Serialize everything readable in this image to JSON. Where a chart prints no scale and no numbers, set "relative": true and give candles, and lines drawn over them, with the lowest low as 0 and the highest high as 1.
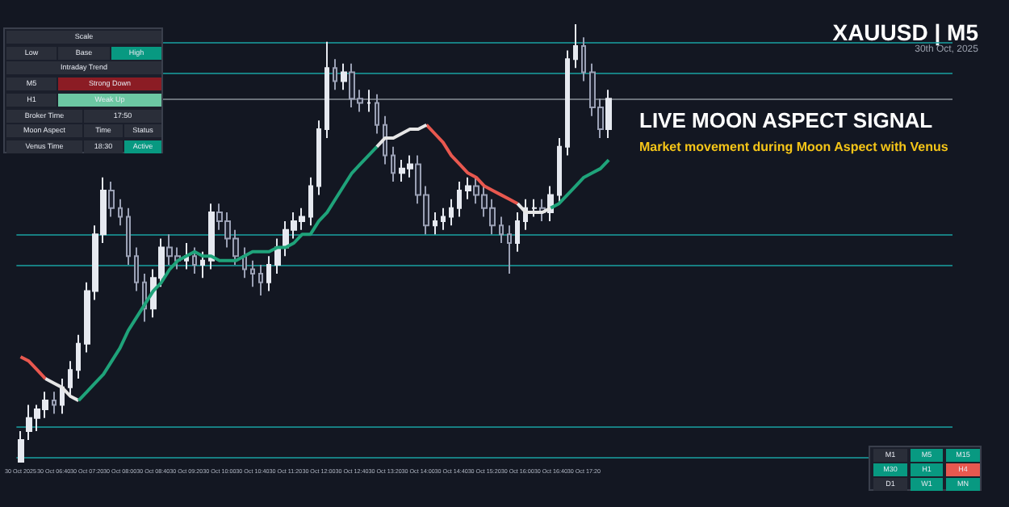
{
  "chart_data": {
    "type": "candlestick",
    "title": "LIVE MOON ASPECT SIGNAL",
    "subtitle": "Market movement during Moon Aspect with Venus",
    "relative": true,
    "marker": "none",
    "annotations": [
      "XAUUSD | M5",
      "30th Oct, 2025",
      "Scale",
      "Low",
      "Base",
      "High",
      "Intraday Trend",
      "M5",
      "Strong Down",
      "H1",
      "Weak Up",
      "Broker Time",
      "17:50",
      "Moon Aspect",
      "Time",
      "Status",
      "Venus Time",
      "18:30",
      "Active",
      "M1",
      "M5",
      "M15",
      "M30",
      "H1",
      "H4",
      "D1",
      "W1",
      "MN"
    ],
    "categories": [
      "30 Oct 2025",
      null,
      null,
      null,
      "30 Oct 06:40",
      null,
      null,
      null,
      "30 Oct 07:20",
      null,
      null,
      null,
      "30 Oct 08:00",
      null,
      null,
      null,
      "30 Oct 08:40",
      null,
      null,
      null,
      "30 Oct 09:20",
      null,
      null,
      null,
      "30 Oct 10:00",
      null,
      null,
      null,
      "30 Oct 10:40",
      null,
      null,
      null,
      "30 Oct 11:20",
      null,
      null,
      null,
      "30 Oct 12:00",
      null,
      null,
      null,
      "30 Oct 12:40",
      null,
      null,
      null,
      "30 Oct 13:20",
      null,
      null,
      null,
      "30 Oct 14:00",
      null,
      null,
      null,
      "30 Oct 14:40",
      null,
      null,
      null,
      "30 Oct 15:20",
      null,
      null,
      null,
      "30 Oct 16:00",
      null,
      null,
      null,
      "30 Oct 16:40",
      null,
      null,
      null,
      "30 Oct 17:20",
      null,
      null,
      null
    ],
    "ohlc": [
      [
        0,
        0.07,
        0,
        0.05
      ],
      [
        0.07,
        0.13,
        0.05,
        0.1
      ],
      [
        0.1,
        0.13,
        0.07,
        0.12
      ],
      [
        0.12,
        0.16,
        0.1,
        0.14
      ],
      [
        0.14,
        0.16,
        0.11,
        0.13
      ],
      [
        0.13,
        0.19,
        0.11,
        0.17
      ],
      [
        0.17,
        0.23,
        0.15,
        0.21
      ],
      [
        0.21,
        0.29,
        0.19,
        0.27
      ],
      [
        0.27,
        0.41,
        0.25,
        0.39
      ],
      [
        0.39,
        0.54,
        0.37,
        0.52
      ],
      [
        0.52,
        0.65,
        0.5,
        0.62
      ],
      [
        0.62,
        0.64,
        0.56,
        0.58
      ],
      [
        0.58,
        0.6,
        0.54,
        0.56
      ],
      [
        0.56,
        0.58,
        0.45,
        0.47
      ],
      [
        0.47,
        0.49,
        0.39,
        0.41
      ],
      [
        0.41,
        0.43,
        0.32,
        0.35
      ],
      [
        0.35,
        0.44,
        0.33,
        0.42
      ],
      [
        0.42,
        0.51,
        0.4,
        0.49
      ],
      [
        0.49,
        0.52,
        0.45,
        0.47
      ],
      [
        0.47,
        0.49,
        0.44,
        0.46
      ],
      [
        0.46,
        0.5,
        0.44,
        0.47
      ],
      [
        0.47,
        0.49,
        0.43,
        0.45
      ],
      [
        0.45,
        0.48,
        0.42,
        0.46
      ],
      [
        0.46,
        0.59,
        0.44,
        0.57
      ],
      [
        0.57,
        0.59,
        0.53,
        0.55
      ],
      [
        0.55,
        0.57,
        0.49,
        0.51
      ],
      [
        0.51,
        0.53,
        0.45,
        0.47
      ],
      [
        0.47,
        0.49,
        0.42,
        0.44
      ],
      [
        0.44,
        0.46,
        0.4,
        0.43
      ],
      [
        0.43,
        0.45,
        0.38,
        0.41
      ],
      [
        0.41,
        0.47,
        0.39,
        0.45
      ],
      [
        0.45,
        0.51,
        0.43,
        0.49
      ],
      [
        0.49,
        0.55,
        0.47,
        0.53
      ],
      [
        0.53,
        0.57,
        0.51,
        0.55
      ],
      [
        0.55,
        0.58,
        0.53,
        0.56
      ],
      [
        0.56,
        0.65,
        0.54,
        0.63
      ],
      [
        0.63,
        0.78,
        0.61,
        0.76
      ],
      [
        0.76,
        0.96,
        0.74,
        0.9
      ],
      [
        0.9,
        0.92,
        0.85,
        0.87
      ],
      [
        0.87,
        0.91,
        0.85,
        0.89
      ],
      [
        0.89,
        0.91,
        0.81,
        0.83
      ],
      [
        0.83,
        0.85,
        0.8,
        0.82
      ],
      [
        0.82,
        0.85,
        0.8,
        0.82
      ],
      [
        0.82,
        0.84,
        0.75,
        0.77
      ],
      [
        0.77,
        0.79,
        0.68,
        0.7
      ],
      [
        0.7,
        0.72,
        0.64,
        0.66
      ],
      [
        0.66,
        0.69,
        0.64,
        0.67
      ],
      [
        0.67,
        0.7,
        0.65,
        0.68
      ],
      [
        0.68,
        0.7,
        0.59,
        0.61
      ],
      [
        0.61,
        0.63,
        0.52,
        0.54
      ],
      [
        0.54,
        0.57,
        0.52,
        0.55
      ],
      [
        0.55,
        0.58,
        0.53,
        0.56
      ],
      [
        0.56,
        0.6,
        0.54,
        0.58
      ],
      [
        0.58,
        0.64,
        0.56,
        0.62
      ],
      [
        0.62,
        0.65,
        0.6,
        0.63
      ],
      [
        0.63,
        0.65,
        0.59,
        0.61
      ],
      [
        0.61,
        0.63,
        0.56,
        0.58
      ],
      [
        0.58,
        0.6,
        0.52,
        0.54
      ],
      [
        0.54,
        0.56,
        0.5,
        0.52
      ],
      [
        0.52,
        0.54,
        0.43,
        0.5
      ],
      [
        0.5,
        0.57,
        0.48,
        0.55
      ],
      [
        0.55,
        0.6,
        0.53,
        0.58
      ],
      [
        0.58,
        0.6,
        0.56,
        0.58
      ],
      [
        0.58,
        0.6,
        0.55,
        0.57
      ],
      [
        0.57,
        0.63,
        0.55,
        0.61
      ],
      [
        0.61,
        0.74,
        0.59,
        0.72
      ],
      [
        0.72,
        0.94,
        0.7,
        0.92
      ],
      [
        0.92,
        1.0,
        0.9,
        0.95
      ],
      [
        0.95,
        0.97,
        0.87,
        0.89
      ],
      [
        0.89,
        0.91,
        0.79,
        0.81
      ],
      [
        0.81,
        0.83,
        0.74,
        0.76
      ],
      [
        0.76,
        0.85,
        0.74,
        0.83
      ]
    ],
    "series": [
      {
        "type": "line",
        "color": "#e8584f",
        "values": [
          0.24,
          0.23,
          0.21,
          0.19,
          null,
          null,
          null,
          null,
          null,
          null,
          null,
          null,
          null,
          null,
          null,
          null,
          null,
          null,
          null,
          null,
          null,
          null,
          null,
          null,
          null,
          null,
          null,
          null,
          null,
          null,
          null,
          null,
          null,
          null,
          null,
          null,
          null,
          null,
          null,
          null,
          null,
          null,
          null,
          null,
          null,
          null,
          null,
          null,
          null,
          0.77,
          0.75,
          0.73,
          0.7,
          0.68,
          0.66,
          0.65,
          0.63,
          0.62,
          0.61,
          0.6,
          0.59,
          null,
          null,
          null,
          null,
          null,
          null,
          null,
          null,
          null,
          null,
          null
        ]
      },
      {
        "type": "line",
        "color": "#e6e6e6",
        "values": [
          null,
          null,
          null,
          0.19,
          0.18,
          0.17,
          0.15,
          0.14,
          null,
          null,
          null,
          null,
          null,
          null,
          null,
          null,
          null,
          null,
          null,
          null,
          null,
          null,
          null,
          null,
          null,
          null,
          null,
          null,
          null,
          null,
          null,
          null,
          null,
          null,
          null,
          null,
          null,
          null,
          null,
          null,
          null,
          null,
          null,
          0.72,
          0.74,
          0.74,
          0.75,
          0.76,
          0.76,
          0.77,
          null,
          null,
          null,
          null,
          null,
          null,
          null,
          null,
          null,
          null,
          0.59,
          0.57,
          0.57,
          0.57,
          0.58,
          null,
          null,
          null,
          null,
          null,
          null,
          null
        ]
      },
      {
        "type": "line",
        "color": "#1fa37a",
        "values": [
          null,
          null,
          null,
          null,
          null,
          null,
          null,
          0.14,
          0.16,
          0.18,
          0.2,
          0.23,
          0.26,
          0.3,
          0.33,
          0.36,
          0.39,
          0.41,
          0.44,
          0.46,
          0.47,
          0.48,
          0.47,
          0.47,
          0.46,
          0.46,
          0.46,
          0.47,
          0.48,
          0.48,
          0.48,
          0.49,
          0.49,
          0.5,
          0.52,
          0.52,
          0.55,
          0.57,
          0.6,
          0.63,
          0.66,
          0.68,
          0.7,
          0.72,
          null,
          null,
          null,
          null,
          null,
          null,
          null,
          null,
          null,
          null,
          null,
          null,
          null,
          null,
          null,
          null,
          null,
          null,
          null,
          null,
          0.58,
          0.59,
          0.61,
          0.63,
          0.65,
          0.66,
          0.67,
          0.69
        ]
      }
    ],
    "ref_lines": [
      {
        "axis": "y",
        "value": 0.96,
        "color": "#1aa3a3"
      },
      {
        "axis": "y",
        "value": 0.89,
        "color": "#1aa3a3"
      },
      {
        "axis": "y",
        "value": 0.83,
        "color": "#8a9099"
      },
      {
        "axis": "y",
        "value": 0.52,
        "color": "#1aa3a3"
      },
      {
        "axis": "y",
        "value": 0.45,
        "color": "#1aa3a3"
      },
      {
        "axis": "y",
        "value": 0.08,
        "color": "#1aa3a3"
      },
      {
        "axis": "y",
        "value": 0.01,
        "color": "#1aa3a3"
      }
    ]
  }
}
